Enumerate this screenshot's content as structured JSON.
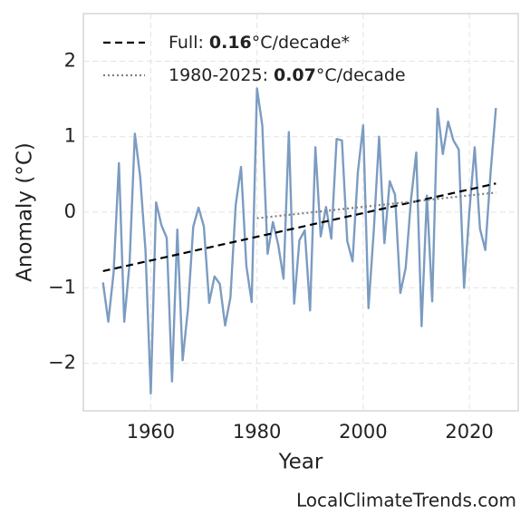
{
  "chart_data": {
    "type": "line",
    "xlabel": "Year",
    "ylabel": "Anomaly (°C)",
    "footer": "LocalClimateTrends.com",
    "x": [
      1951,
      1952,
      1953,
      1954,
      1955,
      1956,
      1957,
      1958,
      1959,
      1960,
      1961,
      1962,
      1963,
      1964,
      1965,
      1966,
      1967,
      1968,
      1969,
      1970,
      1971,
      1972,
      1973,
      1974,
      1975,
      1976,
      1977,
      1978,
      1979,
      1980,
      1981,
      1982,
      1983,
      1984,
      1985,
      1986,
      1987,
      1988,
      1989,
      1990,
      1991,
      1992,
      1993,
      1994,
      1995,
      1996,
      1997,
      1998,
      1999,
      2000,
      2001,
      2002,
      2003,
      2004,
      2005,
      2006,
      2007,
      2008,
      2009,
      2010,
      2011,
      2012,
      2013,
      2014,
      2015,
      2016,
      2017,
      2018,
      2019,
      2020,
      2021,
      2022,
      2023,
      2024,
      2025
    ],
    "series": [
      {
        "color": "#7b9cc1",
        "values": [
          -0.93,
          -1.45,
          -0.8,
          0.65,
          -1.45,
          -0.68,
          1.04,
          0.47,
          -0.5,
          -2.4,
          0.13,
          -0.17,
          -0.34,
          -2.24,
          -0.23,
          -1.96,
          -1.28,
          -0.19,
          0.06,
          -0.19,
          -1.2,
          -0.85,
          -0.95,
          -1.5,
          -1.13,
          0.1,
          0.6,
          -0.71,
          -1.19,
          1.64,
          1.15,
          -0.55,
          -0.13,
          -0.43,
          -0.88,
          1.06,
          -1.21,
          -0.37,
          -0.24,
          -1.3,
          0.86,
          -0.32,
          0.07,
          -0.35,
          0.97,
          0.95,
          -0.38,
          -0.65,
          0.53,
          1.15,
          -1.27,
          -0.24,
          1.0,
          -0.41,
          0.41,
          0.23,
          -1.07,
          -0.74,
          0.16,
          0.79,
          -1.51,
          0.22,
          -1.18,
          1.37,
          0.77,
          1.2,
          0.95,
          0.83,
          -1.0,
          0.01,
          0.86,
          -0.22,
          -0.5,
          0.53,
          1.38
        ]
      }
    ],
    "trends": [
      {
        "name": "Full:",
        "slope": 0.16,
        "unit": "°C/decade*",
        "color": "#000000",
        "style": "dashed",
        "x": [
          1951,
          2025
        ],
        "values": [
          -0.78,
          0.38
        ]
      },
      {
        "name": "1980-2025:",
        "slope": 0.07,
        "unit": "°C/decade",
        "color": "#808080",
        "style": "dotted",
        "x": [
          1980,
          2025
        ],
        "values": [
          -0.08,
          0.26
        ]
      }
    ],
    "xlim": [
      1947.3,
      2029.2
    ],
    "ylim": [
      -2.63,
      2.63
    ],
    "xticks": [
      1960,
      1980,
      2000,
      2020
    ],
    "yticks": [
      {
        "value": -2,
        "label": "−2"
      },
      {
        "value": -1,
        "label": "−1"
      },
      0,
      1,
      2
    ],
    "grid": true,
    "legend": "upper left"
  }
}
